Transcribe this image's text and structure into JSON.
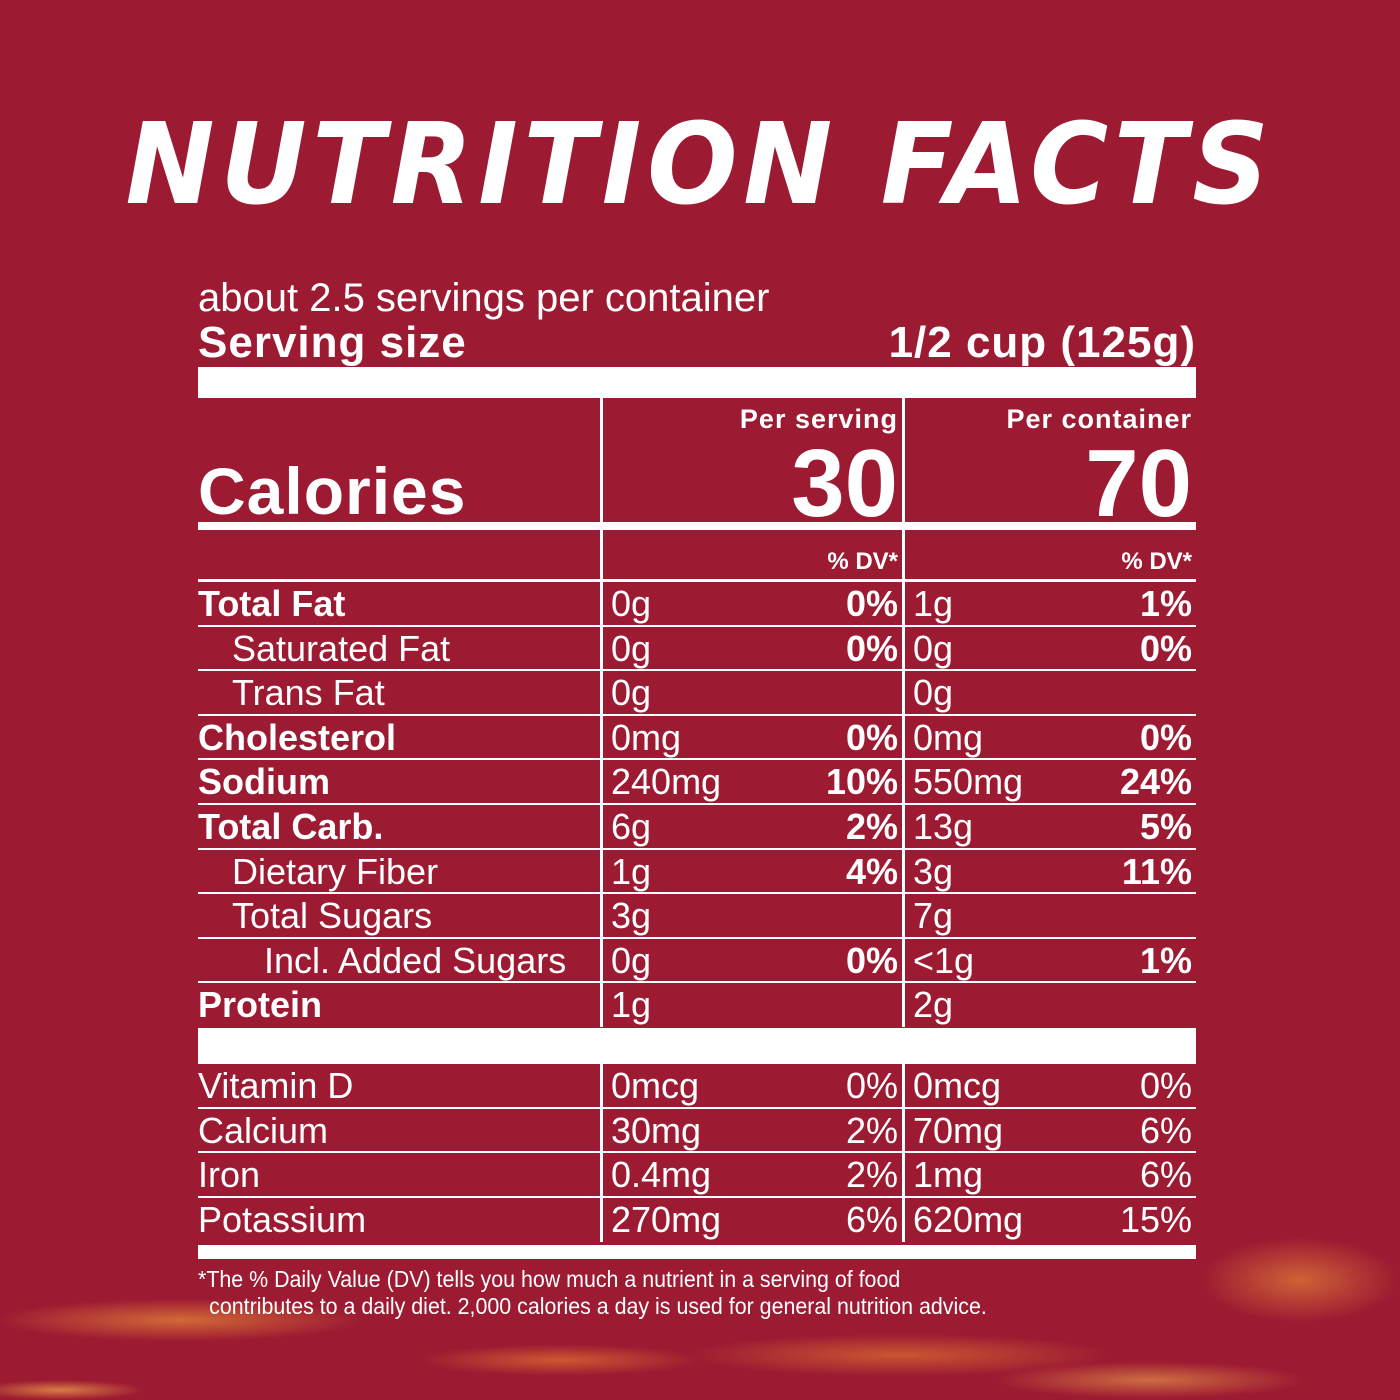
{
  "title": "NUTRITION FACTS",
  "servings_per_container": "about 2.5 servings per container",
  "serving_size": {
    "label": "Serving size",
    "value": "1/2 cup (125g)"
  },
  "calories": {
    "label": "Calories",
    "per_serving_label": "Per serving",
    "per_serving": "30",
    "per_container_label": "Per container",
    "per_container": "70"
  },
  "dv_header": "% DV*",
  "nutrients": [
    {
      "name": "Total Fat",
      "bold": true,
      "indent": 0,
      "serving_amt": "0g",
      "serving_dv": "0%",
      "container_amt": "1g",
      "container_dv": "1%"
    },
    {
      "name": "Saturated Fat",
      "bold": false,
      "indent": 1,
      "serving_amt": "0g",
      "serving_dv": "0%",
      "container_amt": "0g",
      "container_dv": "0%"
    },
    {
      "name": "Trans Fat",
      "bold": false,
      "indent": 1,
      "serving_amt": "0g",
      "serving_dv": "",
      "container_amt": "0g",
      "container_dv": ""
    },
    {
      "name": "Cholesterol",
      "bold": true,
      "indent": 0,
      "serving_amt": "0mg",
      "serving_dv": "0%",
      "container_amt": "0mg",
      "container_dv": "0%"
    },
    {
      "name": "Sodium",
      "bold": true,
      "indent": 0,
      "serving_amt": "240mg",
      "serving_dv": "10%",
      "container_amt": "550mg",
      "container_dv": "24%"
    },
    {
      "name": "Total Carb.",
      "bold": true,
      "indent": 0,
      "serving_amt": "6g",
      "serving_dv": "2%",
      "container_amt": "13g",
      "container_dv": "5%"
    },
    {
      "name": "Dietary Fiber",
      "bold": false,
      "indent": 1,
      "serving_amt": "1g",
      "serving_dv": "4%",
      "container_amt": "3g",
      "container_dv": "11%"
    },
    {
      "name": "Total Sugars",
      "bold": false,
      "indent": 1,
      "serving_amt": "3g",
      "serving_dv": "",
      "container_amt": "7g",
      "container_dv": ""
    },
    {
      "name": "Incl. Added Sugars",
      "bold": false,
      "indent": 2,
      "serving_amt": "0g",
      "serving_dv": "0%",
      "container_amt": "<1g",
      "container_dv": "1%"
    },
    {
      "name": "Protein",
      "bold": true,
      "indent": 0,
      "serving_amt": "1g",
      "serving_dv": "",
      "container_amt": "2g",
      "container_dv": ""
    }
  ],
  "vitamins": [
    {
      "name": "Vitamin D",
      "serving_amt": "0mcg",
      "serving_dv": "0%",
      "container_amt": "0mcg",
      "container_dv": "0%"
    },
    {
      "name": "Calcium",
      "serving_amt": "30mg",
      "serving_dv": "2%",
      "container_amt": "70mg",
      "container_dv": "6%"
    },
    {
      "name": "Iron",
      "serving_amt": "0.4mg",
      "serving_dv": "2%",
      "container_amt": "1mg",
      "container_dv": "6%"
    },
    {
      "name": "Potassium",
      "serving_amt": "270mg",
      "serving_dv": "6%",
      "container_amt": "620mg",
      "container_dv": "15%"
    }
  ],
  "footnote": [
    "*The % Daily Value (DV) tells you how much a nutrient in a serving of food",
    "contributes to a daily diet. 2,000 calories a day is used for general nutrition advice."
  ],
  "colors": {
    "background": "#9d1b32",
    "text": "#ffffff",
    "flame": "#ffa03c"
  }
}
